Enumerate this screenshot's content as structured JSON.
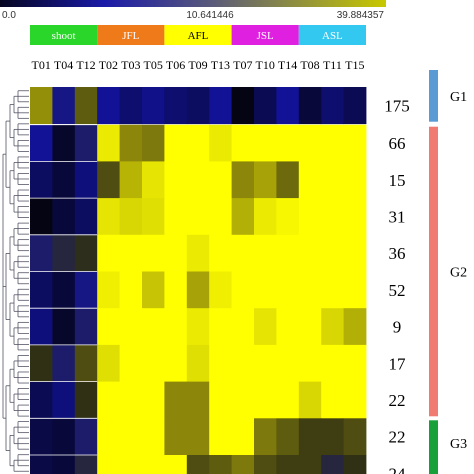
{
  "color_scale": {
    "min_label": "0.0",
    "mid_label": "10.641446",
    "max_label": "39.884357",
    "colors": [
      "#0a0a3a",
      "#1a1aa8",
      "#ffff00"
    ]
  },
  "tissues": [
    {
      "label": "shoot",
      "color": "#2bd62b",
      "text_color": "#ffffff"
    },
    {
      "label": "JFL",
      "color": "#ef7a1a",
      "text_color": "#ffffff"
    },
    {
      "label": "AFL",
      "color": "#ffff00",
      "text_color": "#000000"
    },
    {
      "label": "JSL",
      "color": "#e020e0",
      "text_color": "#ffffff"
    },
    {
      "label": "ASL",
      "color": "#33c8f0",
      "text_color": "#ffffff"
    }
  ],
  "groups": [
    {
      "label": "G1",
      "color": "#5b9bd5"
    },
    {
      "label": "G2",
      "color": "#f07b73"
    },
    {
      "label": "G3",
      "color": "#1aa03a"
    }
  ],
  "chart_data": {
    "type": "heatmap",
    "columns": [
      "T01",
      "T04",
      "T12",
      "T02",
      "T03",
      "T05",
      "T06",
      "T09",
      "T13",
      "T07",
      "T10",
      "T14",
      "T08",
      "T11",
      "T15"
    ],
    "column_tissue": [
      0,
      0,
      0,
      1,
      1,
      1,
      2,
      2,
      2,
      3,
      3,
      3,
      4,
      4,
      4
    ],
    "rows": [
      {
        "count": "175",
        "group": 0,
        "values": [
          0.58,
          0.12,
          0.4,
          0.1,
          0.07,
          0.09,
          0.07,
          0.06,
          0.1,
          0.0,
          0.05,
          0.1,
          0.03,
          0.07,
          0.05
        ]
      },
      {
        "count": "66",
        "group": 1,
        "values": [
          0.1,
          0.02,
          0.15,
          0.92,
          0.55,
          0.5,
          1,
          1,
          0.92,
          1,
          1,
          1,
          1,
          1,
          1
        ]
      },
      {
        "count": "15",
        "group": 1,
        "values": [
          0.06,
          0.03,
          0.08,
          0.35,
          0.72,
          0.9,
          1,
          1,
          1,
          0.55,
          0.65,
          0.45,
          1,
          1,
          1
        ]
      },
      {
        "count": "31",
        "group": 1,
        "values": [
          0.0,
          0.03,
          0.06,
          0.9,
          0.85,
          0.88,
          1,
          1,
          1,
          0.7,
          0.92,
          0.97,
          1,
          1,
          1
        ]
      },
      {
        "count": "36",
        "group": 1,
        "values": [
          0.15,
          0.2,
          0.24,
          1,
          1,
          1,
          1,
          0.92,
          1,
          1,
          1,
          1,
          1,
          1,
          1
        ]
      },
      {
        "count": "52",
        "group": 1,
        "values": [
          0.06,
          0.03,
          0.12,
          0.94,
          1,
          0.78,
          1,
          0.65,
          0.94,
          1,
          1,
          1,
          1,
          1,
          1
        ]
      },
      {
        "count": "9",
        "group": 1,
        "values": [
          0.08,
          0.02,
          0.15,
          1,
          1,
          1,
          1,
          0.92,
          1,
          1,
          0.9,
          1,
          1,
          0.85,
          0.7
        ]
      },
      {
        "count": "17",
        "group": 1,
        "values": [
          0.25,
          0.15,
          0.35,
          0.88,
          1,
          1,
          1,
          0.88,
          1,
          1,
          1,
          1,
          1,
          1,
          1
        ]
      },
      {
        "count": "22",
        "group": 1,
        "values": [
          0.05,
          0.08,
          0.25,
          1,
          1,
          1,
          0.55,
          0.55,
          1,
          1,
          1,
          1,
          0.85,
          1,
          1
        ]
      },
      {
        "count": "22",
        "group": 2,
        "values": [
          0.04,
          0.03,
          0.15,
          1,
          1,
          1,
          0.55,
          0.55,
          1,
          1,
          0.5,
          0.4,
          0.3,
          0.3,
          0.35
        ]
      },
      {
        "count": "24",
        "group": 2,
        "values": [
          0.04,
          0.03,
          0.2,
          1,
          1,
          1,
          1,
          0.35,
          0.4,
          0.5,
          0.35,
          0.3,
          0.3,
          0.2,
          0.25
        ]
      }
    ]
  }
}
